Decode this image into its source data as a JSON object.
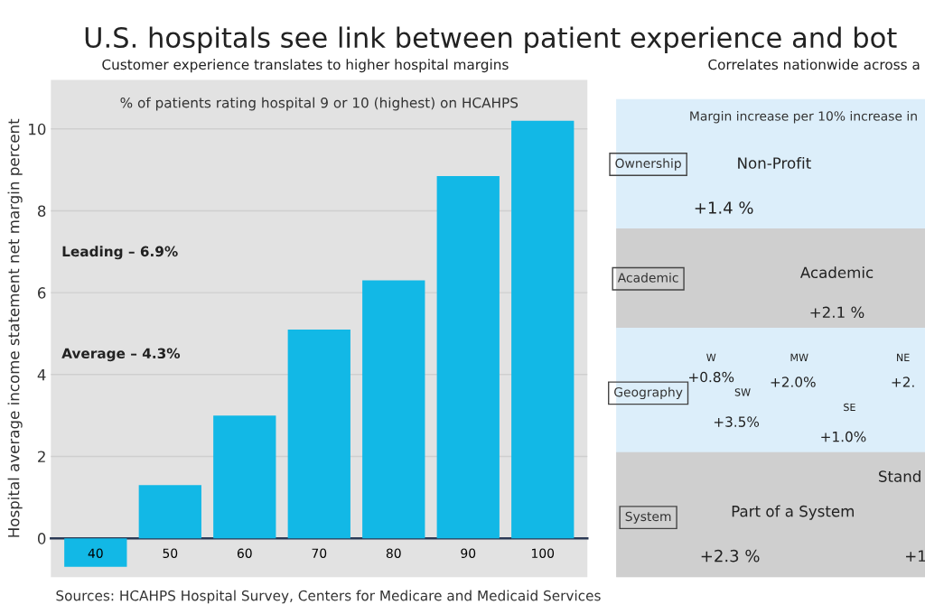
{
  "chart_data": [
    {
      "type": "bar",
      "title": "U.S. hospitals see link between patient experience and bot",
      "subtitle": "Customer experience translates to higher hospital margins",
      "xlabel": "% of patients rating hospital 9 or 10 (highest) on HCAHPS",
      "ylabel": "Hospital average income statement net margin percent",
      "categories": [
        "40",
        "50",
        "60",
        "70",
        "80",
        "90",
        "100"
      ],
      "values": [
        -0.7,
        1.3,
        3.0,
        5.1,
        6.3,
        8.85,
        10.2
      ],
      "color": "#12b8e6",
      "ylim": [
        -0.95,
        11.2
      ],
      "yticks": [
        0,
        2,
        4,
        6,
        8,
        10
      ],
      "grid": "y",
      "annotations": [
        "Leading – 6.9%",
        "Average – 4.3%",
        "Sources: HCAHPS Hospital Survey, Centers for Medicare and Medicaid Services"
      ]
    },
    {
      "type": "other",
      "title": "Correlates nationwide across a",
      "subtitle": "Margin increase per 10% increase in",
      "annotations": [
        "Ownership",
        "Non-Profit",
        "+1.4 %",
        "Academic",
        "Academic",
        "+2.1 %",
        "Geography",
        "W",
        "+0.8%",
        "MW",
        "+2.0%",
        "NE",
        "+2.",
        "SW",
        "+3.5%",
        "SE",
        "+1.0%",
        "System",
        "Part of a System",
        "+2.3 %",
        "Stand",
        "+1"
      ]
    }
  ]
}
